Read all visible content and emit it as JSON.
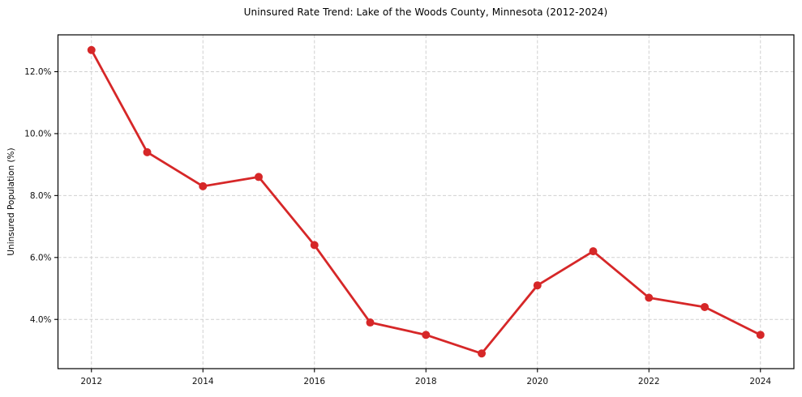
{
  "chart_data": {
    "type": "line",
    "title": "Uninsured Rate Trend: Lake of the Woods County, Minnesota (2012-2024)",
    "xlabel": "",
    "ylabel": "Uninsured Population (%)",
    "x": [
      2012,
      2013,
      2014,
      2015,
      2016,
      2017,
      2018,
      2019,
      2020,
      2021,
      2022,
      2023,
      2024
    ],
    "values": [
      12.7,
      9.4,
      8.3,
      8.6,
      6.4,
      3.9,
      3.5,
      2.9,
      5.1,
      6.2,
      4.7,
      4.4,
      3.5
    ],
    "series_name": "Uninsured rate",
    "x_ticks": [
      2012,
      2014,
      2016,
      2018,
      2020,
      2022,
      2024
    ],
    "x_tick_labels": [
      "2012",
      "2014",
      "2016",
      "2018",
      "2020",
      "2022",
      "2024"
    ],
    "y_ticks": [
      4,
      6,
      8,
      10,
      12
    ],
    "y_tick_labels": [
      "4.0%",
      "6.0%",
      "8.0%",
      "10.0%",
      "12.0%"
    ],
    "xlim": [
      2011.4,
      2024.6
    ],
    "ylim": [
      2.41,
      13.19
    ],
    "grid": true,
    "grid_style": "dashed",
    "legend": false,
    "line_color": "#d62728",
    "marker": "circle",
    "marker_color": "#d62728",
    "grid_color": "#d0d0d0",
    "axis_color": "#000000",
    "background": "#ffffff"
  }
}
